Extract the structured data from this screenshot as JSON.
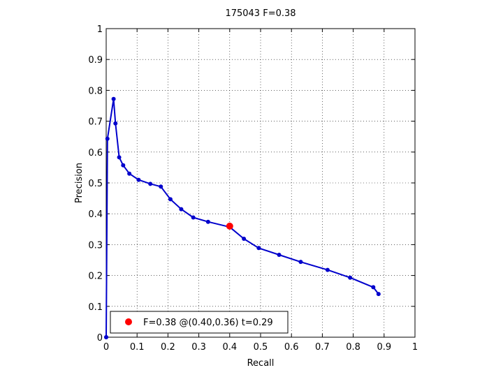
{
  "chart_data": {
    "type": "line",
    "title": "175043 F=0.38",
    "xlabel": "Recall",
    "ylabel": "Precision",
    "xlim": [
      0,
      1
    ],
    "ylim": [
      0,
      1
    ],
    "xticks": [
      "0",
      "0.1",
      "0.2",
      "0.3",
      "0.4",
      "0.5",
      "0.6",
      "0.7",
      "0.8",
      "0.9",
      "1"
    ],
    "yticks": [
      "0",
      "0.1",
      "0.2",
      "0.3",
      "0.4",
      "0.5",
      "0.6",
      "0.7",
      "0.8",
      "0.9",
      "1"
    ],
    "grid": true,
    "legend_position": "bottom-left",
    "series": [
      {
        "color": "#0000cc",
        "x": [
          0.0,
          0.0,
          0.004,
          0.024,
          0.03,
          0.042,
          0.055,
          0.075,
          0.105,
          0.143,
          0.177,
          0.208,
          0.243,
          0.282,
          0.33,
          0.4,
          0.446,
          0.494,
          0.56,
          0.63,
          0.717,
          0.79,
          0.865,
          0.882
        ],
        "y": [
          0.0,
          0.0,
          0.643,
          0.772,
          0.693,
          0.583,
          0.557,
          0.53,
          0.51,
          0.497,
          0.488,
          0.447,
          0.415,
          0.388,
          0.374,
          0.357,
          0.319,
          0.289,
          0.267,
          0.244,
          0.218,
          0.193,
          0.162,
          0.14
        ]
      }
    ],
    "highlight": {
      "x": 0.4,
      "y": 0.36,
      "color": "#ff0000",
      "label": "F=0.38 @(0.40,0.36) t=0.29"
    }
  }
}
